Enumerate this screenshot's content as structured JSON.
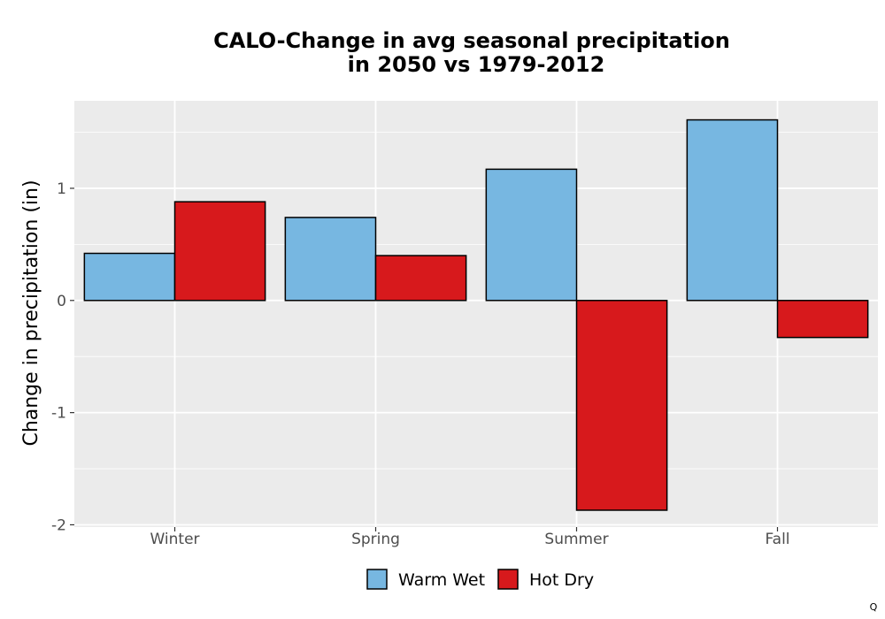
{
  "chart_data": {
    "type": "bar",
    "title": "CALO-Change in avg seasonal precipitation\nin 2050 vs 1979-2012",
    "xlabel": "",
    "ylabel": "Change in precipitation (in)",
    "categories": [
      "Winter",
      "Spring",
      "Summer",
      "Fall"
    ],
    "series": [
      {
        "name": "Warm Wet",
        "color": "#77b7e1",
        "values": [
          0.42,
          0.74,
          1.17,
          1.61
        ]
      },
      {
        "name": "Hot Dry",
        "color": "#d7191c",
        "values": [
          0.88,
          0.4,
          -1.87,
          -0.33
        ]
      }
    ],
    "ylim": [
      -2.02,
      1.78
    ],
    "yticks": [
      -2,
      -1,
      0,
      1
    ],
    "ytick_labels": [
      "-2",
      "-1",
      "0",
      "1"
    ],
    "grid": true,
    "legend_position": "bottom",
    "colors": {
      "panel_background": "#ebebeb",
      "grid": "#ffffff",
      "bar_outline": "#000000"
    }
  },
  "watermark": "Q"
}
